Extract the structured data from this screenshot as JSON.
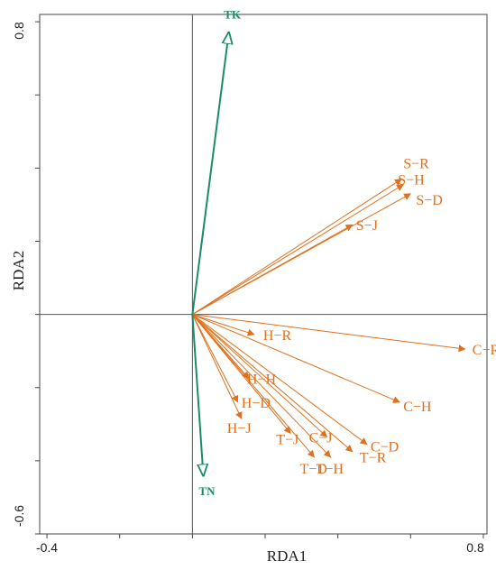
{
  "chart_data": {
    "type": "biplot",
    "xlabel": "RDA1",
    "ylabel": "RDA2",
    "xlim": [
      -0.42,
      0.81
    ],
    "ylim": [
      -0.6,
      0.82
    ],
    "x_tick_labels": [
      "-0.4",
      "0.8"
    ],
    "y_tick_labels": [
      "0.8",
      "-0.6"
    ],
    "x_minor_ticks": [
      -0.4,
      -0.2,
      0.0,
      0.2,
      0.4,
      0.6,
      0.8
    ],
    "y_minor_ticks": [
      -0.6,
      -0.4,
      -0.2,
      0.0,
      0.2,
      0.4,
      0.6,
      0.8
    ],
    "colors": {
      "environment": "#1a8a6a",
      "species": "#e0701c",
      "axes": "#555555"
    },
    "environmental_vectors": [
      {
        "label": "TK",
        "x": 0.1,
        "y": 0.77
      },
      {
        "label": "TN",
        "x": 0.03,
        "y": -0.44
      }
    ],
    "species_vectors": [
      {
        "label": "S−R",
        "x": 0.575,
        "y": 0.37
      },
      {
        "label": "S−H",
        "x": 0.58,
        "y": 0.355
      },
      {
        "label": "S−D",
        "x": 0.6,
        "y": 0.33
      },
      {
        "label": "S−J",
        "x": 0.44,
        "y": 0.245
      },
      {
        "label": "H−R",
        "x": 0.17,
        "y": -0.055
      },
      {
        "label": "C−R",
        "x": 0.75,
        "y": -0.095
      },
      {
        "label": "H−H",
        "x": 0.155,
        "y": -0.175
      },
      {
        "label": "C−H",
        "x": 0.57,
        "y": -0.24
      },
      {
        "label": "H−D",
        "x": 0.125,
        "y": -0.24
      },
      {
        "label": "H−J",
        "x": 0.135,
        "y": -0.285
      },
      {
        "label": "C−D",
        "x": 0.48,
        "y": -0.355
      },
      {
        "label": "C−J",
        "x": 0.37,
        "y": -0.335
      },
      {
        "label": "T−J",
        "x": 0.27,
        "y": -0.325
      },
      {
        "label": "T−R",
        "x": 0.44,
        "y": -0.375
      },
      {
        "label": "T−D",
        "x": 0.335,
        "y": -0.39
      },
      {
        "label": "T−H",
        "x": 0.38,
        "y": -0.39
      }
    ]
  }
}
